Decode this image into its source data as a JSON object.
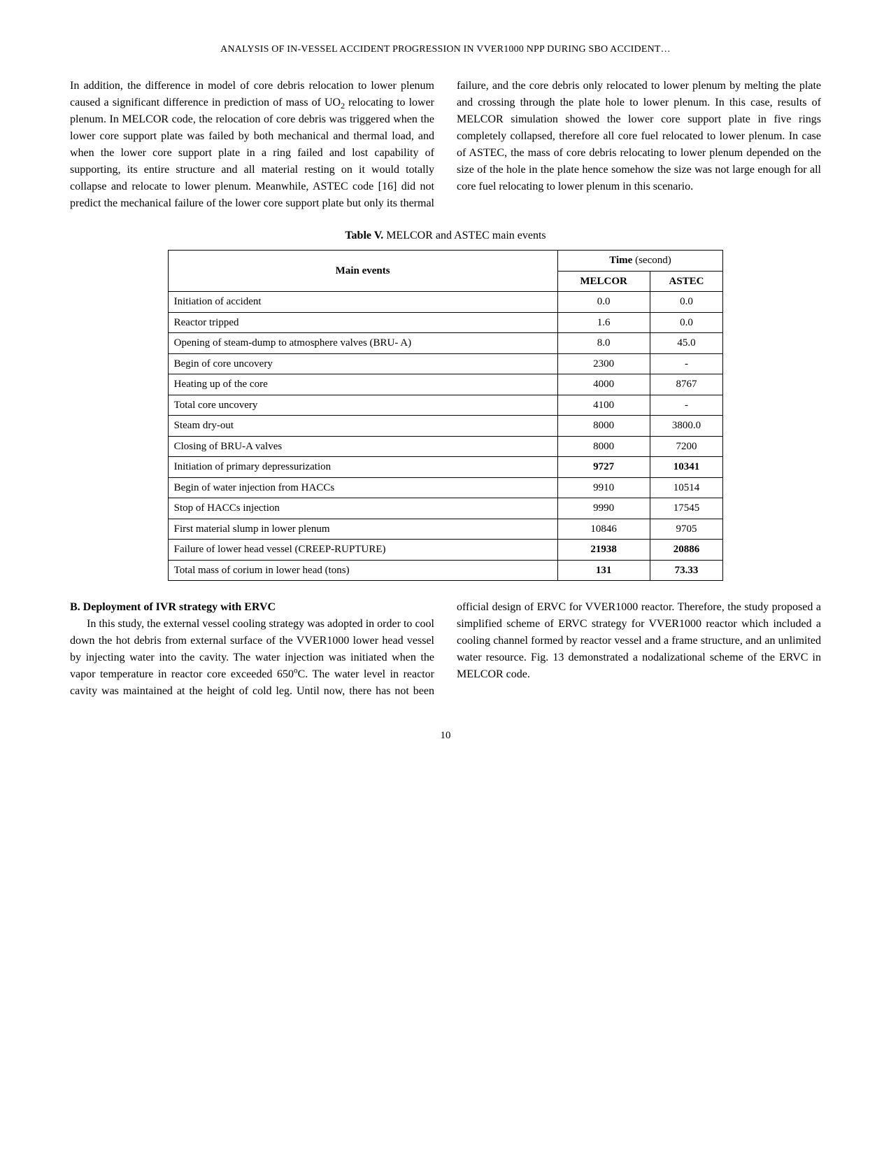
{
  "running_header": "ANALYSIS OF IN-VESSEL ACCIDENT PROGRESSION IN VVER1000 NPP DURING SBO ACCIDENT…",
  "upper_paragraph_html": "In addition, the difference in model of core debris relocation to lower plenum caused a significant difference in prediction of mass of UO<span class=\"sub\">2</span> relocating to lower plenum. In MELCOR code, the relocation of core debris was triggered when the lower core support plate was failed by both mechanical and thermal load, and when the lower core support plate in a ring failed and lost capability of supporting, its entire structure and all material resting on it would totally collapse and relocate to lower plenum. Meanwhile, ASTEC code [16] did not predict the mechanical failure of the lower core support plate but only its thermal failure, and the core debris only relocated to lower plenum by melting the plate and crossing through the plate hole to lower plenum. In this case, results of MELCOR simulation showed the lower core support plate in five rings completely collapsed, therefore all core fuel relocated to lower plenum. In case of ASTEC, the mass of core debris relocating to lower plenum depended on the size of the hole in the plate hence somehow the size was not large enough for all core fuel relocating to lower plenum in this scenario.",
  "table": {
    "caption_label": "Table V.",
    "caption_text": "MELCOR and ASTEC main events",
    "header_main": "Main events",
    "header_time": "Time (second)",
    "col_melcor": "MELCOR",
    "col_astec": "ASTEC",
    "rows": [
      {
        "label": "Initiation of accident",
        "melcor": "0.0",
        "astec": "0.0",
        "bold": false
      },
      {
        "label": "Reactor tripped",
        "melcor": "1.6",
        "astec": "0.0",
        "bold": false
      },
      {
        "label": "Opening of steam-dump to atmosphere valves (BRU- A)",
        "melcor": "8.0",
        "astec": "45.0",
        "bold": false
      },
      {
        "label": "Begin of core uncovery",
        "melcor": "2300",
        "astec": "-",
        "bold": false
      },
      {
        "label": "Heating up of the core",
        "melcor": "4000",
        "astec": "8767",
        "bold": false
      },
      {
        "label": "Total core uncovery",
        "melcor": "4100",
        "astec": "-",
        "bold": false
      },
      {
        "label": "Steam dry-out",
        "melcor": "8000",
        "astec": "3800.0",
        "bold": false
      },
      {
        "label": "Closing of BRU-A valves",
        "melcor": "8000",
        "astec": "7200",
        "bold": false
      },
      {
        "label": "Initiation of primary depressurization",
        "melcor": "9727",
        "astec": "10341",
        "bold": true
      },
      {
        "label": "Begin of water injection from HACCs",
        "melcor": "9910",
        "astec": "10514",
        "bold": false
      },
      {
        "label": "Stop of HACCs injection",
        "melcor": "9990",
        "astec": "17545",
        "bold": false
      },
      {
        "label": "First material slump in lower plenum",
        "melcor": "10846",
        "astec": "9705",
        "bold": false
      },
      {
        "label": "Failure of lower head vessel (CREEP-RUPTURE)",
        "melcor": "21938",
        "astec": "20886",
        "bold": true
      },
      {
        "label": "Total mass of corium in lower head (tons)",
        "melcor": "131",
        "astec": "73.33",
        "bold": true
      }
    ]
  },
  "section_b_heading": "B. Deployment of IVR strategy with ERVC",
  "section_b_body_html": "In this study, the external vessel cooling strategy was adopted in order to cool down the hot debris from external surface of the VVER1000 lower head vessel by injecting water into the cavity. The water injection was initiated when the vapor temperature in reactor core exceeded 650<span class=\"sup\">o</span>C. The water level in reactor cavity was maintained at the height of cold leg. Until now, there has not been official design of ERVC for VVER1000 reactor. Therefore, the study proposed a simplified scheme of ERVC strategy for VVER1000 reactor which included a cooling channel formed by reactor vessel and a frame structure, and an unlimited water resource. Fig. 13 demonstrated a nodalizational scheme of the ERVC in MELCOR code.",
  "page_number": "10"
}
